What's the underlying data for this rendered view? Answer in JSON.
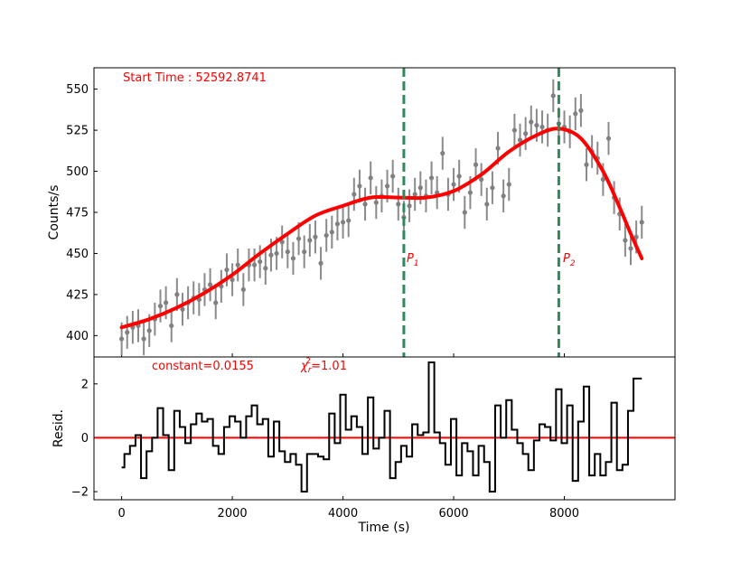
{
  "chart_data": [
    {
      "type": "line",
      "panel": "lightcurve",
      "ylabel": "Counts/s",
      "xlim": [
        -500,
        10000
      ],
      "ylim": [
        387,
        563
      ],
      "yticks": [
        400,
        425,
        450,
        475,
        500,
        525,
        550
      ],
      "annotation": "Start Time : 52592.8741",
      "markers": [
        {
          "x": 5100,
          "label": "P",
          "sub": "1"
        },
        {
          "x": 7900,
          "label": "P",
          "sub": "2"
        }
      ],
      "series": [
        {
          "name": "data",
          "style": "errorbar",
          "x": [
            0,
            100,
            200,
            300,
            400,
            500,
            600,
            700,
            800,
            900,
            1000,
            1100,
            1200,
            1300,
            1400,
            1500,
            1600,
            1700,
            1800,
            1900,
            2000,
            2100,
            2200,
            2300,
            2400,
            2500,
            2600,
            2700,
            2800,
            2900,
            3000,
            3100,
            3200,
            3300,
            3400,
            3500,
            3600,
            3700,
            3800,
            3900,
            4000,
            4100,
            4200,
            4300,
            4400,
            4500,
            4600,
            4700,
            4800,
            4900,
            5000,
            5100,
            5200,
            5300,
            5400,
            5500,
            5600,
            5700,
            5800,
            5900,
            6000,
            6100,
            6200,
            6300,
            6400,
            6500,
            6600,
            6700,
            6800,
            6900,
            7000,
            7100,
            7200,
            7300,
            7400,
            7500,
            7600,
            7700,
            7800,
            7900,
            8000,
            8100,
            8200,
            8300,
            8400,
            8500,
            8600,
            8700,
            8800,
            8900,
            9000,
            9100,
            9200,
            9300,
            9400
          ],
          "y": [
            398,
            402,
            405,
            406,
            398,
            403,
            410,
            418,
            420,
            406,
            425,
            416,
            420,
            423,
            422,
            428,
            431,
            420,
            430,
            440,
            434,
            443,
            428,
            443,
            443,
            445,
            441,
            449,
            450,
            457,
            451,
            447,
            459,
            451,
            458,
            460,
            444,
            461,
            463,
            468,
            469,
            470,
            486,
            491,
            480,
            496,
            481,
            485,
            491,
            497,
            480,
            472,
            479,
            486,
            490,
            485,
            496,
            487,
            511,
            486,
            492,
            497,
            475,
            487,
            504,
            495,
            480,
            490,
            514,
            485,
            492,
            525,
            519,
            523,
            530,
            528,
            527,
            525,
            546,
            529,
            527,
            524,
            535,
            537,
            504,
            512,
            508,
            495,
            520,
            484,
            474,
            458,
            453,
            460,
            469
          ],
          "yerr": 10
        },
        {
          "name": "model",
          "color": "#ff0000",
          "x": [
            0,
            500,
            1000,
            1500,
            2000,
            2500,
            3000,
            3500,
            4000,
            4500,
            5000,
            5500,
            6000,
            6500,
            7000,
            7500,
            7900,
            8300,
            8700,
            9000,
            9200,
            9400
          ],
          "y": [
            405,
            410,
            417,
            426,
            437,
            450,
            462,
            473,
            479,
            484,
            484,
            484,
            488,
            498,
            512,
            522,
            526,
            520,
            500,
            478,
            462,
            447
          ]
        }
      ]
    },
    {
      "type": "line",
      "panel": "residuals",
      "style": "step",
      "ylabel": "Resid.",
      "xlabel": "Time (s)",
      "xlim": [
        -500,
        10000
      ],
      "ylim": [
        -2.3,
        3.0
      ],
      "yticks": [
        -2,
        0,
        2
      ],
      "xticks": [
        0,
        2000,
        4000,
        6000,
        8000
      ],
      "annotation_constant": "constant=0.0155",
      "annotation_chi_symbol": "χ",
      "annotation_chi_sub": "r",
      "annotation_chi_sup": "2",
      "annotation_chi_value": "=1.01",
      "zero_line_color": "#ff0000",
      "series": [
        {
          "name": "residuals",
          "x": [
            0,
            100,
            200,
            300,
            400,
            500,
            600,
            700,
            800,
            900,
            1000,
            1100,
            1200,
            1300,
            1400,
            1500,
            1600,
            1700,
            1800,
            1900,
            2000,
            2100,
            2200,
            2300,
            2400,
            2500,
            2600,
            2700,
            2800,
            2900,
            3000,
            3100,
            3200,
            3300,
            3400,
            3500,
            3600,
            3700,
            3800,
            3900,
            4000,
            4100,
            4200,
            4300,
            4400,
            4500,
            4600,
            4700,
            4800,
            4900,
            5000,
            5100,
            5200,
            5300,
            5400,
            5500,
            5600,
            5700,
            5800,
            5900,
            6000,
            6100,
            6200,
            6300,
            6400,
            6500,
            6600,
            6700,
            6800,
            6900,
            7000,
            7100,
            7200,
            7300,
            7400,
            7500,
            7600,
            7700,
            7800,
            7900,
            8000,
            8100,
            8200,
            8300,
            8400,
            8500,
            8600,
            8700,
            8800,
            8900,
            9000,
            9100,
            9200,
            9300,
            9400
          ],
          "y": [
            -1.1,
            -0.6,
            -0.3,
            0.1,
            -1.5,
            -0.5,
            0.0,
            1.1,
            0.1,
            -1.2,
            1.0,
            0.4,
            -0.2,
            0.5,
            0.9,
            0.6,
            0.7,
            -0.3,
            -0.6,
            0.4,
            0.8,
            0.6,
            0.0,
            0.8,
            1.2,
            0.5,
            0.7,
            -0.7,
            0.6,
            -0.5,
            -0.9,
            -0.6,
            -1.0,
            -2.0,
            -0.6,
            -0.6,
            -0.7,
            -0.8,
            0.9,
            -0.2,
            1.6,
            0.3,
            0.8,
            0.4,
            -0.6,
            1.5,
            -0.4,
            0.0,
            1.0,
            -1.5,
            -0.9,
            -0.3,
            -0.7,
            0.5,
            0.1,
            0.2,
            2.8,
            0.2,
            -0.2,
            -1.0,
            0.7,
            -1.4,
            -0.2,
            -0.5,
            -1.4,
            -0.3,
            -0.9,
            -2.0,
            1.2,
            0.0,
            1.4,
            0.3,
            -0.2,
            -0.6,
            -1.2,
            -0.1,
            0.5,
            0.4,
            -0.1,
            1.8,
            -0.2,
            1.2,
            -1.6,
            0.6,
            1.9,
            -1.4,
            -0.6,
            -1.4,
            -0.9,
            1.3,
            -1.2,
            -1.0,
            1.0,
            2.2,
            2.2
          ]
        }
      ]
    }
  ]
}
